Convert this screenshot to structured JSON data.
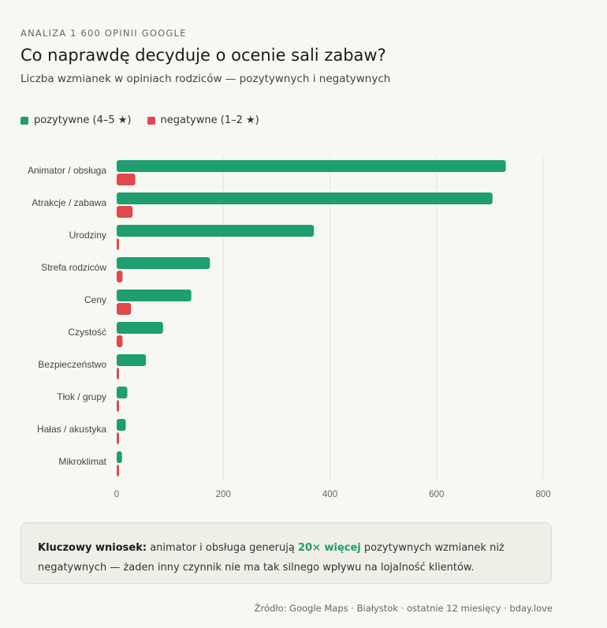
{
  "header": {
    "eyebrow": "ANALIZA 1 600 OPINII GOOGLE",
    "title": "Co naprawdę decyduje o ocenie sali zabaw?",
    "subtitle": "Liczba wzmianek w opiniach rodziców — pozytywnych i negatywnych"
  },
  "colors": {
    "positive": "#1f9e6f",
    "negative": "#e0484c",
    "grid": "#e6e6e0",
    "axis_text": "#666666"
  },
  "chart_data": {
    "type": "bar",
    "orientation": "horizontal",
    "categories": [
      "Animator / obsługa",
      "Atrakcje / zabawa",
      "Urodziny",
      "Strefa rodziców",
      "Ceny",
      "Czystość",
      "Bezpieczeństwo",
      "Tłok / grupy",
      "Hałas / akustyka",
      "Mikroklimat"
    ],
    "series": [
      {
        "name": "pozytywne (4–5 ★)",
        "values": [
          730,
          705,
          370,
          175,
          140,
          87,
          55,
          20,
          17,
          10
        ]
      },
      {
        "name": "negatywne (1–2 ★)",
        "values": [
          35,
          30,
          4,
          11,
          27,
          11,
          4,
          2,
          2,
          2
        ]
      }
    ],
    "xlim": [
      0,
      800
    ],
    "xticks": [
      0,
      200,
      400,
      600,
      800
    ],
    "grid": true,
    "legend_position": "top-left"
  },
  "callout": {
    "label": "Kluczowy wniosek:",
    "text_before": " animator i obsługa generują ",
    "highlight": "20× więcej",
    "text_after": " pozytywnych wzmianek niż negatywnych — żaden inny czynnik nie ma tak silnego wpływu na lojalność klientów."
  },
  "source": "Źródło: Google Maps · Białystok · ostatnie 12 miesięcy · bday.love"
}
